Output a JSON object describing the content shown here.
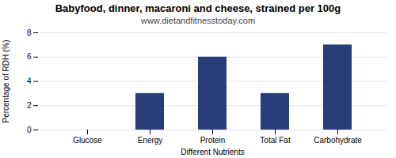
{
  "chart_data": {
    "type": "bar",
    "title": "Babyfood, dinner, macaroni and cheese, strained per 100g",
    "subtitle": "www.dietandfitnesstoday.com",
    "xlabel": "Different Nutrients",
    "ylabel": "Percentage of RDH (%)",
    "categories": [
      "Glucose",
      "Energy",
      "Protein",
      "Total Fat",
      "Carbohydrate"
    ],
    "values": [
      0,
      3,
      6,
      3,
      7
    ],
    "color": "#263d7a",
    "ylim": [
      0,
      8
    ],
    "yticks": [
      0,
      2,
      4,
      6,
      8
    ],
    "grid": true
  }
}
